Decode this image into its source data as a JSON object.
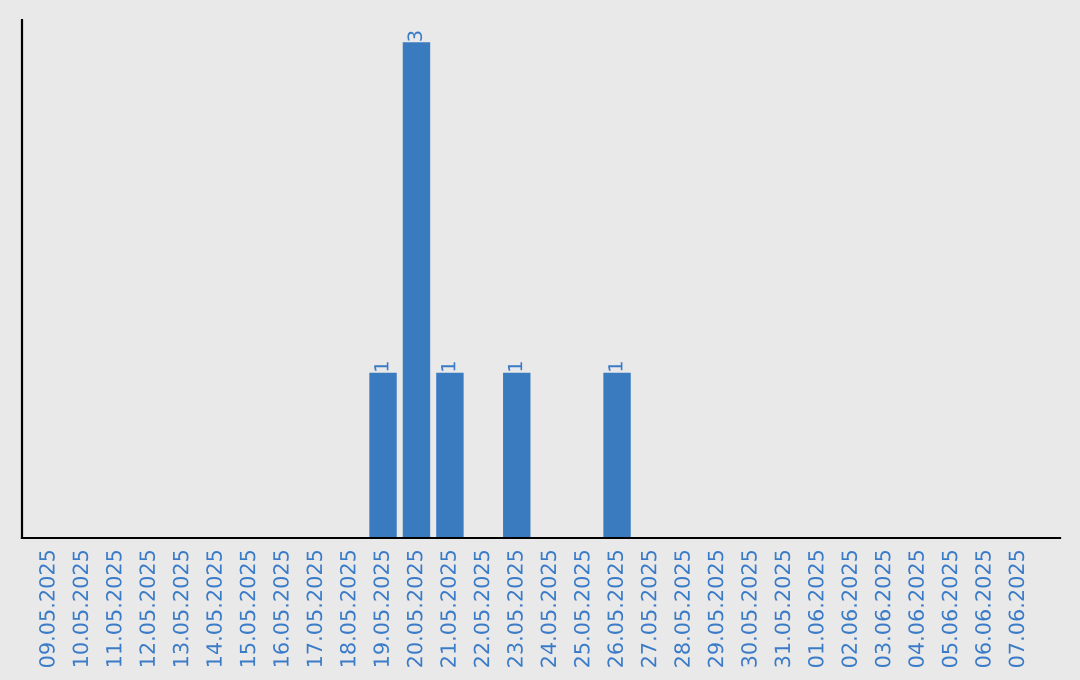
{
  "chart_data": {
    "type": "bar",
    "categories": [
      "09.05.2025",
      "10.05.2025",
      "11.05.2025",
      "12.05.2025",
      "13.05.2025",
      "14.05.2025",
      "15.05.2025",
      "16.05.2025",
      "17.05.2025",
      "18.05.2025",
      "19.05.2025",
      "20.05.2025",
      "21.05.2025",
      "22.05.2025",
      "23.05.2025",
      "24.05.2025",
      "25.05.2025",
      "26.05.2025",
      "27.05.2025",
      "28.05.2025",
      "29.05.2025",
      "30.05.2025",
      "31.05.2025",
      "01.06.2025",
      "02.06.2025",
      "03.06.2025",
      "04.06.2025",
      "05.06.2025",
      "06.06.2025",
      "07.06.2025"
    ],
    "values": [
      0,
      0,
      0,
      0,
      0,
      0,
      0,
      0,
      0,
      0,
      1,
      3,
      1,
      0,
      1,
      0,
      0,
      1,
      0,
      0,
      0,
      0,
      0,
      0,
      0,
      0,
      0,
      0,
      0,
      0
    ],
    "value_labels": [
      null,
      null,
      null,
      null,
      null,
      null,
      null,
      null,
      null,
      null,
      "1",
      "3",
      "1",
      null,
      "1",
      null,
      null,
      "1",
      null,
      null,
      null,
      null,
      null,
      null,
      null,
      null,
      null,
      null,
      null,
      null
    ],
    "color": "#3a7bc0",
    "tick_labels": "x",
    "grid": false
  }
}
